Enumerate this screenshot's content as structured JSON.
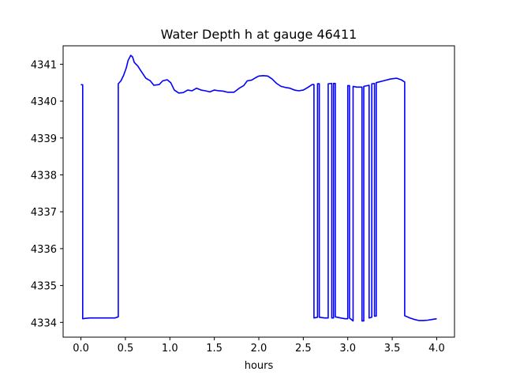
{
  "chart_data": {
    "type": "line",
    "title": "Water Depth h at gauge 46411",
    "xlabel": "hours",
    "ylabel": "",
    "xlim": [
      -0.2,
      4.2
    ],
    "ylim": [
      4333.6,
      4341.5
    ],
    "grid": false,
    "legend": "none",
    "x_ticks": [
      0.0,
      0.5,
      1.0,
      1.5,
      2.0,
      2.5,
      3.0,
      3.5,
      4.0
    ],
    "x_tick_labels": [
      "0.0",
      "0.5",
      "1.0",
      "1.5",
      "2.0",
      "2.5",
      "3.0",
      "3.5",
      "4.0"
    ],
    "y_ticks": [
      4334,
      4335,
      4336,
      4337,
      4338,
      4339,
      4340,
      4341
    ],
    "y_tick_labels": [
      "4334",
      "4335",
      "4336",
      "4337",
      "4338",
      "4339",
      "4340",
      "4341"
    ],
    "series": [
      {
        "color": "#0000ff",
        "points": [
          [
            0.0,
            4340.45
          ],
          [
            0.02,
            4340.44
          ],
          [
            0.02,
            4334.1
          ],
          [
            0.05,
            4334.11
          ],
          [
            0.1,
            4334.12
          ],
          [
            0.2,
            4334.12
          ],
          [
            0.3,
            4334.12
          ],
          [
            0.38,
            4334.12
          ],
          [
            0.42,
            4334.15
          ],
          [
            0.42,
            4340.47
          ],
          [
            0.45,
            4340.55
          ],
          [
            0.48,
            4340.7
          ],
          [
            0.51,
            4340.9
          ],
          [
            0.53,
            4341.1
          ],
          [
            0.56,
            4341.24
          ],
          [
            0.58,
            4341.2
          ],
          [
            0.6,
            4341.05
          ],
          [
            0.64,
            4340.95
          ],
          [
            0.68,
            4340.8
          ],
          [
            0.73,
            4340.62
          ],
          [
            0.78,
            4340.55
          ],
          [
            0.82,
            4340.43
          ],
          [
            0.88,
            4340.45
          ],
          [
            0.92,
            4340.55
          ],
          [
            0.97,
            4340.58
          ],
          [
            1.01,
            4340.5
          ],
          [
            1.05,
            4340.3
          ],
          [
            1.1,
            4340.22
          ],
          [
            1.15,
            4340.23
          ],
          [
            1.2,
            4340.3
          ],
          [
            1.25,
            4340.28
          ],
          [
            1.3,
            4340.35
          ],
          [
            1.35,
            4340.3
          ],
          [
            1.4,
            4340.28
          ],
          [
            1.45,
            4340.25
          ],
          [
            1.5,
            4340.3
          ],
          [
            1.55,
            4340.28
          ],
          [
            1.6,
            4340.27
          ],
          [
            1.65,
            4340.24
          ],
          [
            1.72,
            4340.24
          ],
          [
            1.78,
            4340.35
          ],
          [
            1.83,
            4340.42
          ],
          [
            1.87,
            4340.55
          ],
          [
            1.92,
            4340.57
          ],
          [
            1.96,
            4340.63
          ],
          [
            2.0,
            4340.68
          ],
          [
            2.05,
            4340.69
          ],
          [
            2.1,
            4340.68
          ],
          [
            2.15,
            4340.6
          ],
          [
            2.2,
            4340.48
          ],
          [
            2.25,
            4340.4
          ],
          [
            2.3,
            4340.37
          ],
          [
            2.35,
            4340.35
          ],
          [
            2.4,
            4340.3
          ],
          [
            2.45,
            4340.28
          ],
          [
            2.5,
            4340.3
          ],
          [
            2.55,
            4340.37
          ],
          [
            2.6,
            4340.45
          ],
          [
            2.62,
            4340.45
          ],
          [
            2.62,
            4334.12
          ],
          [
            2.66,
            4334.14
          ],
          [
            2.66,
            4340.47
          ],
          [
            2.68,
            4340.47
          ],
          [
            2.68,
            4334.14
          ],
          [
            2.74,
            4334.12
          ],
          [
            2.78,
            4334.12
          ],
          [
            2.78,
            4340.47
          ],
          [
            2.82,
            4340.48
          ],
          [
            2.82,
            4334.12
          ],
          [
            2.84,
            4334.12
          ],
          [
            2.84,
            4340.48
          ],
          [
            2.86,
            4340.48
          ],
          [
            2.86,
            4334.15
          ],
          [
            2.92,
            4334.12
          ],
          [
            2.97,
            4334.1
          ],
          [
            3.0,
            4334.1
          ],
          [
            3.0,
            4340.42
          ],
          [
            3.02,
            4340.42
          ],
          [
            3.02,
            4334.12
          ],
          [
            3.06,
            4334.04
          ],
          [
            3.06,
            4340.4
          ],
          [
            3.1,
            4340.38
          ],
          [
            3.16,
            4340.38
          ],
          [
            3.16,
            4334.04
          ],
          [
            3.18,
            4334.04
          ],
          [
            3.18,
            4340.4
          ],
          [
            3.24,
            4340.43
          ],
          [
            3.24,
            4334.12
          ],
          [
            3.27,
            4334.14
          ],
          [
            3.27,
            4340.47
          ],
          [
            3.3,
            4340.48
          ],
          [
            3.3,
            4334.17
          ],
          [
            3.32,
            4334.17
          ],
          [
            3.32,
            4340.5
          ],
          [
            3.4,
            4340.55
          ],
          [
            3.48,
            4340.6
          ],
          [
            3.55,
            4340.62
          ],
          [
            3.6,
            4340.58
          ],
          [
            3.64,
            4340.52
          ],
          [
            3.64,
            4334.18
          ],
          [
            3.7,
            4334.12
          ],
          [
            3.75,
            4334.08
          ],
          [
            3.8,
            4334.05
          ],
          [
            3.85,
            4334.05
          ],
          [
            3.9,
            4334.06
          ],
          [
            3.95,
            4334.08
          ],
          [
            4.0,
            4334.1
          ]
        ]
      }
    ]
  }
}
